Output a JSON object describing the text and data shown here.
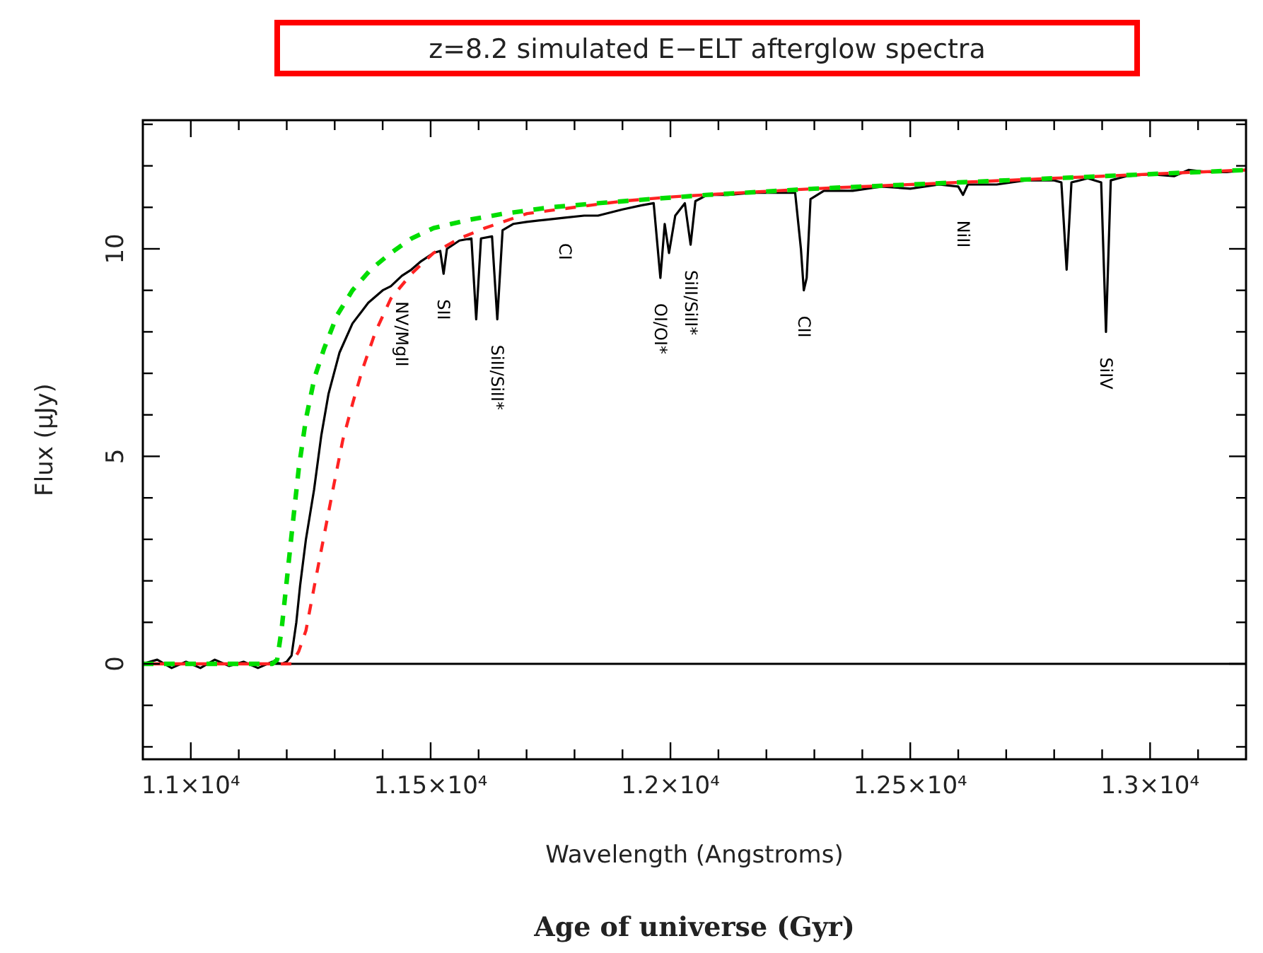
{
  "chart_data": {
    "type": "line",
    "title": "z=8.2 simulated E−ELT afterglow spectra",
    "xlabel": "Wavelength (Angstroms)",
    "ylabel": "Flux (µJy)",
    "xlim": [
      10900,
      13200
    ],
    "ylim": [
      -2.3,
      13.1
    ],
    "xticks": [
      {
        "value": 11000,
        "label": "1.1×10⁴"
      },
      {
        "value": 11100,
        "label": null
      },
      {
        "value": 11200,
        "label": null
      },
      {
        "value": 11300,
        "label": null
      },
      {
        "value": 11400,
        "label": null
      },
      {
        "value": 11500,
        "label": "1.15×10⁴"
      },
      {
        "value": 11600,
        "label": null
      },
      {
        "value": 11700,
        "label": null
      },
      {
        "value": 11800,
        "label": null
      },
      {
        "value": 11900,
        "label": null
      },
      {
        "value": 12000,
        "label": "1.2×10⁴"
      },
      {
        "value": 12100,
        "label": null
      },
      {
        "value": 12200,
        "label": null
      },
      {
        "value": 12300,
        "label": null
      },
      {
        "value": 12400,
        "label": null
      },
      {
        "value": 12500,
        "label": "1.25×10⁴"
      },
      {
        "value": 12600,
        "label": null
      },
      {
        "value": 12700,
        "label": null
      },
      {
        "value": 12800,
        "label": null
      },
      {
        "value": 12900,
        "label": null
      },
      {
        "value": 13000,
        "label": "1.3×10⁴"
      },
      {
        "value": 13100,
        "label": null
      }
    ],
    "yticks": [
      {
        "value": -2,
        "label": null
      },
      {
        "value": -1,
        "label": null
      },
      0,
      {
        "value": 1,
        "label": null
      },
      {
        "value": 2,
        "label": null
      },
      {
        "value": 3,
        "label": null
      },
      {
        "value": 4,
        "label": null
      },
      5,
      {
        "value": 6,
        "label": null
      },
      {
        "value": 7,
        "label": null
      },
      {
        "value": 8,
        "label": null
      },
      {
        "value": 9,
        "label": null
      },
      10,
      {
        "value": 11,
        "label": null
      },
      {
        "value": 12,
        "label": null
      },
      {
        "value": 13,
        "label": null
      }
    ],
    "grid": false,
    "ref_lines": [
      {
        "axis": "y",
        "value": 0,
        "color": "#000000"
      }
    ],
    "series": [
      {
        "color": "#00dd00",
        "line_style": "dashed",
        "x": [
          10900,
          11170,
          11180,
          11189,
          11200,
          11210,
          11225,
          11240,
          11258,
          11278,
          11305,
          11337,
          11375,
          11417,
          11460,
          11506,
          11580,
          11654,
          11750,
          11850,
          11959,
          12077,
          12300,
          12600,
          12900,
          13200
        ],
        "values": [
          0,
          0,
          0.1,
          0.8,
          2.0,
          3.1,
          4.7,
          5.9,
          6.9,
          7.6,
          8.4,
          9.0,
          9.5,
          9.9,
          10.25,
          10.5,
          10.7,
          10.85,
          11.0,
          11.1,
          11.2,
          11.3,
          11.45,
          11.6,
          11.75,
          11.9
        ]
      },
      {
        "color": "#ff2222",
        "line_style": "dashed",
        "x": [
          10900,
          11210,
          11225,
          11240,
          11258,
          11278,
          11298,
          11317,
          11338,
          11358,
          11385,
          11417,
          11460,
          11506,
          11560,
          11613,
          11701,
          11800,
          11900,
          12000,
          12100,
          12300,
          12600,
          12900,
          13200
        ],
        "values": [
          0,
          0,
          0.3,
          0.8,
          1.9,
          3.1,
          4.3,
          5.4,
          6.3,
          7.1,
          8.0,
          8.8,
          9.4,
          9.9,
          10.25,
          10.5,
          10.85,
          11.0,
          11.15,
          11.25,
          11.32,
          11.45,
          11.6,
          11.75,
          11.9
        ]
      },
      {
        "color": "#000000",
        "line_style": "solid",
        "x": [
          10900,
          10930,
          10960,
          10990,
          11020,
          11050,
          11080,
          11110,
          11140,
          11170,
          11190,
          11200,
          11210,
          11220,
          11228,
          11240,
          11257,
          11272,
          11287,
          11310,
          11337,
          11370,
          11400,
          11417,
          11440,
          11460,
          11480,
          11506,
          11520,
          11527,
          11534,
          11560,
          11585,
          11595,
          11605,
          11628,
          11639,
          11650,
          11672,
          11700,
          11740,
          11780,
          11820,
          11849,
          11900,
          11940,
          11965,
          11979,
          11988,
          11997,
          12010,
          12030,
          12042,
          12052,
          12077,
          12120,
          12170,
          12220,
          12260,
          12272,
          12278,
          12284,
          12292,
          12320,
          12380,
          12440,
          12500,
          12560,
          12600,
          12610,
          12620,
          12680,
          12740,
          12800,
          12815,
          12826,
          12836,
          12870,
          12898,
          12908,
          12918,
          12950,
          13000,
          13050,
          13080,
          13120,
          13160,
          13200
        ],
        "values": [
          0.0,
          0.1,
          -0.1,
          0.05,
          -0.1,
          0.1,
          -0.05,
          0.05,
          -0.1,
          0.05,
          0.0,
          0.05,
          0.2,
          1.0,
          1.9,
          3.0,
          4.2,
          5.5,
          6.5,
          7.5,
          8.2,
          8.7,
          9.0,
          9.1,
          9.35,
          9.5,
          9.7,
          9.9,
          9.95,
          9.4,
          10.0,
          10.2,
          10.25,
          8.3,
          10.25,
          10.3,
          8.3,
          10.45,
          10.6,
          10.65,
          10.7,
          10.75,
          10.8,
          10.8,
          10.95,
          11.05,
          11.1,
          9.3,
          10.6,
          9.9,
          10.8,
          11.1,
          10.1,
          11.15,
          11.3,
          11.3,
          11.35,
          11.35,
          11.35,
          10.0,
          9.0,
          9.3,
          11.2,
          11.4,
          11.4,
          11.5,
          11.45,
          11.55,
          11.5,
          11.3,
          11.55,
          11.55,
          11.65,
          11.65,
          11.6,
          9.5,
          11.6,
          11.7,
          11.6,
          8.0,
          11.65,
          11.75,
          11.8,
          11.75,
          11.9,
          11.85,
          11.85,
          11.9
        ]
      }
    ],
    "annotations": [
      {
        "text": "NV/MgII",
        "x": 11440,
        "y": 9.35
      },
      {
        "text": "SII",
        "x": 11527,
        "y": 9.4
      },
      {
        "text": "SiII/SiII*",
        "x": 11639,
        "y": 8.3
      },
      {
        "text": "CI",
        "x": 11780,
        "y": 10.75
      },
      {
        "text": "OI/OI*",
        "x": 11979,
        "y": 9.3
      },
      {
        "text": "SiII/SiII*",
        "x": 12042,
        "y": 10.1
      },
      {
        "text": "CII",
        "x": 12278,
        "y": 9.0
      },
      {
        "text": "NiII",
        "x": 12610,
        "y": 11.3
      },
      {
        "text": "SiIV",
        "x": 12908,
        "y": 8.0
      },
      "Age of universe (Gyr)"
    ]
  }
}
